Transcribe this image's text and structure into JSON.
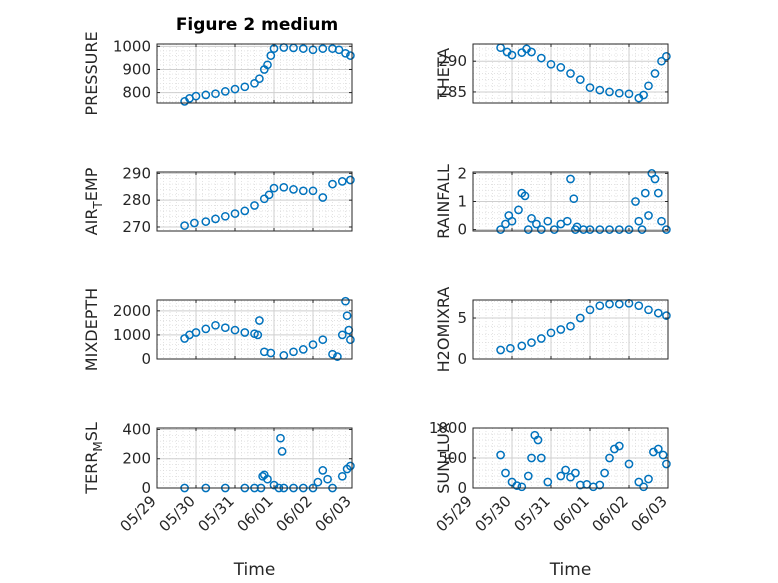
{
  "figure": {
    "title": "Figure 2 medium",
    "marker_color": "#0072bd"
  },
  "chart_data": [
    {
      "type": "scatter",
      "ylabel": "PRESSURE",
      "ylim": [
        755,
        1010
      ],
      "yticks": [
        800,
        900,
        1000
      ],
      "grid": true,
      "x": [
        "2016-05-29T17:00",
        "2016-05-29T20:00",
        "2016-05-30T00:00",
        "2016-05-30T06:00",
        "2016-05-30T12:00",
        "2016-05-30T18:00",
        "2016-05-31T00:00",
        "2016-05-31T06:00",
        "2016-05-31T12:00",
        "2016-05-31T15:00",
        "2016-05-31T18:00",
        "2016-05-31T20:00",
        "2016-05-31T22:00",
        "2016-06-01T00:00",
        "2016-06-01T06:00",
        "2016-06-01T12:00",
        "2016-06-01T18:00",
        "2016-06-02T00:00",
        "2016-06-02T06:00",
        "2016-06-02T12:00",
        "2016-06-02T16:00",
        "2016-06-02T20:00",
        "2016-06-02T23:00"
      ],
      "y": [
        762,
        775,
        785,
        790,
        795,
        805,
        815,
        825,
        840,
        860,
        900,
        920,
        960,
        990,
        995,
        993,
        990,
        985,
        990,
        990,
        985,
        970,
        960
      ]
    },
    {
      "type": "scatter",
      "ylabel": "THETA",
      "ylim": [
        283.2,
        292.8
      ],
      "yticks": [
        285,
        290
      ],
      "grid": true,
      "x": [
        "2016-05-29T17:00",
        "2016-05-29T21:00",
        "2016-05-30T00:00",
        "2016-05-30T06:00",
        "2016-05-30T09:00",
        "2016-05-30T12:00",
        "2016-05-30T18:00",
        "2016-05-31T00:00",
        "2016-05-31T06:00",
        "2016-05-31T12:00",
        "2016-05-31T18:00",
        "2016-06-01T00:00",
        "2016-06-01T06:00",
        "2016-06-01T12:00",
        "2016-06-01T18:00",
        "2016-06-02T00:00",
        "2016-06-02T06:00",
        "2016-06-02T09:00",
        "2016-06-02T12:00",
        "2016-06-02T16:00",
        "2016-06-02T20:00",
        "2016-06-02T23:00"
      ],
      "y": [
        292.2,
        291.5,
        291.0,
        291.4,
        292.0,
        291.5,
        290.5,
        289.5,
        289.0,
        288.0,
        287.0,
        285.7,
        285.3,
        285.0,
        284.8,
        284.7,
        284.0,
        284.5,
        286.0,
        288.0,
        290.0,
        290.8
      ]
    },
    {
      "type": "scatter",
      "ylabel": "AIR_TEMP",
      "ylim": [
        268.5,
        290.5
      ],
      "yticks": [
        270,
        280,
        290
      ],
      "grid": true,
      "x": [
        "2016-05-29T17:00",
        "2016-05-29T23:00",
        "2016-05-30T06:00",
        "2016-05-30T12:00",
        "2016-05-30T18:00",
        "2016-05-31T00:00",
        "2016-05-31T06:00",
        "2016-05-31T12:00",
        "2016-05-31T18:00",
        "2016-05-31T21:00",
        "2016-06-01T00:00",
        "2016-06-01T06:00",
        "2016-06-01T12:00",
        "2016-06-01T18:00",
        "2016-06-02T00:00",
        "2016-06-02T06:00",
        "2016-06-02T12:00",
        "2016-06-02T18:00",
        "2016-06-02T23:00"
      ],
      "y": [
        270.5,
        271.5,
        272.0,
        273.0,
        274.0,
        275.0,
        276.0,
        278.0,
        280.5,
        282.0,
        284.5,
        284.8,
        284.0,
        283.5,
        283.5,
        281.0,
        286.0,
        287.0,
        287.5
      ]
    },
    {
      "type": "scatter",
      "ylabel": "RAINFALL",
      "ylim": [
        -0.05,
        2.05
      ],
      "yticks": [
        0,
        1,
        2
      ],
      "grid": true,
      "x": [
        "2016-05-29T17:00",
        "2016-05-29T20:00",
        "2016-05-29T22:00",
        "2016-05-30T00:00",
        "2016-05-30T04:00",
        "2016-05-30T06:00",
        "2016-05-30T08:00",
        "2016-05-30T10:00",
        "2016-05-30T12:00",
        "2016-05-30T15:00",
        "2016-05-30T18:00",
        "2016-05-30T22:00",
        "2016-05-31T02:00",
        "2016-05-31T06:00",
        "2016-05-31T10:00",
        "2016-05-31T12:00",
        "2016-05-31T14:00",
        "2016-05-31T15:00",
        "2016-05-31T16:00",
        "2016-05-31T20:00",
        "2016-06-01T00:00",
        "2016-06-01T06:00",
        "2016-06-01T12:00",
        "2016-06-01T18:00",
        "2016-06-02T00:00",
        "2016-06-02T04:00",
        "2016-06-02T06:00",
        "2016-06-02T08:00",
        "2016-06-02T10:00",
        "2016-06-02T12:00",
        "2016-06-02T14:00",
        "2016-06-02T16:00",
        "2016-06-02T18:00",
        "2016-06-02T20:00",
        "2016-06-02T23:00"
      ],
      "y": [
        0.0,
        0.2,
        0.5,
        0.3,
        0.7,
        1.3,
        1.2,
        0.0,
        0.4,
        0.2,
        0.0,
        0.3,
        0.0,
        0.2,
        0.3,
        1.8,
        1.1,
        0.0,
        0.1,
        0.0,
        0.0,
        0.0,
        0.0,
        0.0,
        0.0,
        1.0,
        0.3,
        0.0,
        1.3,
        0.5,
        2.0,
        1.8,
        1.3,
        0.3,
        0.0
      ]
    },
    {
      "type": "scatter",
      "ylabel": "MIXDEPTH",
      "ylim": [
        0,
        2450
      ],
      "yticks": [
        0,
        1000,
        2000
      ],
      "grid": true,
      "x": [
        "2016-05-29T17:00",
        "2016-05-29T20:00",
        "2016-05-30T00:00",
        "2016-05-30T06:00",
        "2016-05-30T12:00",
        "2016-05-30T18:00",
        "2016-05-31T00:00",
        "2016-05-31T06:00",
        "2016-05-31T12:00",
        "2016-05-31T14:00",
        "2016-05-31T15:00",
        "2016-05-31T18:00",
        "2016-05-31T22:00",
        "2016-06-01T06:00",
        "2016-06-01T12:00",
        "2016-06-01T18:00",
        "2016-06-02T00:00",
        "2016-06-02T06:00",
        "2016-06-02T12:00",
        "2016-06-02T15:00",
        "2016-06-02T18:00",
        "2016-06-02T20:00",
        "2016-06-02T21:00",
        "2016-06-02T22:00",
        "2016-06-02T23:00"
      ],
      "y": [
        850,
        1000,
        1100,
        1250,
        1400,
        1300,
        1200,
        1100,
        1050,
        1000,
        1600,
        300,
        250,
        150,
        300,
        400,
        600,
        800,
        200,
        100,
        1000,
        2400,
        1800,
        1200,
        800
      ]
    },
    {
      "type": "scatter",
      "ylabel": "H2OMIXRA",
      "ylim": [
        0,
        7.2
      ],
      "yticks": [
        0,
        5
      ],
      "grid": true,
      "x": [
        "2016-05-29T17:00",
        "2016-05-29T23:00",
        "2016-05-30T06:00",
        "2016-05-30T12:00",
        "2016-05-30T18:00",
        "2016-05-31T00:00",
        "2016-05-31T06:00",
        "2016-05-31T12:00",
        "2016-05-31T18:00",
        "2016-06-01T00:00",
        "2016-06-01T06:00",
        "2016-06-01T12:00",
        "2016-06-01T18:00",
        "2016-06-02T00:00",
        "2016-06-02T06:00",
        "2016-06-02T12:00",
        "2016-06-02T18:00",
        "2016-06-02T23:00"
      ],
      "y": [
        1.1,
        1.3,
        1.6,
        2.0,
        2.5,
        3.2,
        3.6,
        4.0,
        5.0,
        6.0,
        6.5,
        6.7,
        6.7,
        6.8,
        6.5,
        6.0,
        5.6,
        5.3
      ]
    },
    {
      "type": "scatter",
      "ylabel": "TERR_MSL",
      "ylim": [
        0,
        410
      ],
      "yticks": [
        0,
        200,
        400
      ],
      "grid": true,
      "x": [
        "2016-05-29T17:00",
        "2016-05-30T06:00",
        "2016-05-30T18:00",
        "2016-05-31T06:00",
        "2016-05-31T12:00",
        "2016-05-31T16:00",
        "2016-05-31T17:00",
        "2016-05-31T18:00",
        "2016-05-31T20:00",
        "2016-06-01T00:00",
        "2016-06-01T03:00",
        "2016-06-01T04:00",
        "2016-06-01T05:00",
        "2016-06-01T06:00",
        "2016-06-01T12:00",
        "2016-06-01T18:00",
        "2016-06-02T00:00",
        "2016-06-02T03:00",
        "2016-06-02T06:00",
        "2016-06-02T09:00",
        "2016-06-02T12:00",
        "2016-06-02T18:00",
        "2016-06-02T21:00",
        "2016-06-02T23:00"
      ],
      "y": [
        0,
        0,
        0,
        0,
        0,
        0,
        80,
        90,
        60,
        20,
        0,
        340,
        250,
        0,
        0,
        0,
        0,
        40,
        120,
        60,
        0,
        80,
        130,
        150
      ]
    },
    {
      "type": "scatter",
      "ylabel": "SUN_FLUX",
      "ylim": [
        0,
        1000
      ],
      "yticks": [
        0,
        500,
        1000
      ],
      "grid": true,
      "x": [
        "2016-05-29T17:00",
        "2016-05-29T20:00",
        "2016-05-30T00:00",
        "2016-05-30T03:00",
        "2016-05-30T06:00",
        "2016-05-30T10:00",
        "2016-05-30T12:00",
        "2016-05-30T14:00",
        "2016-05-30T16:00",
        "2016-05-30T18:00",
        "2016-05-30T22:00",
        "2016-05-31T06:00",
        "2016-05-31T09:00",
        "2016-05-31T12:00",
        "2016-05-31T15:00",
        "2016-05-31T18:00",
        "2016-05-31T22:00",
        "2016-06-01T02:00",
        "2016-06-01T06:00",
        "2016-06-01T09:00",
        "2016-06-01T12:00",
        "2016-06-01T15:00",
        "2016-06-01T18:00",
        "2016-06-02T00:00",
        "2016-06-02T06:00",
        "2016-06-02T09:00",
        "2016-06-02T12:00",
        "2016-06-02T15:00",
        "2016-06-02T18:00",
        "2016-06-02T21:00",
        "2016-06-02T23:00"
      ],
      "y": [
        550,
        250,
        100,
        40,
        20,
        200,
        500,
        880,
        800,
        500,
        100,
        200,
        300,
        180,
        250,
        50,
        60,
        20,
        50,
        250,
        500,
        650,
        700,
        400,
        100,
        20,
        150,
        600,
        650,
        550,
        400
      ]
    }
  ],
  "xaxis": {
    "label": "Time",
    "ticks": [
      "2016-05-29",
      "2016-05-30",
      "2016-05-31",
      "2016-06-01",
      "2016-06-02",
      "2016-06-03"
    ],
    "tick_labels": [
      "05/29",
      "05/30",
      "05/31",
      "06/01",
      "06/02",
      "06/03"
    ]
  }
}
